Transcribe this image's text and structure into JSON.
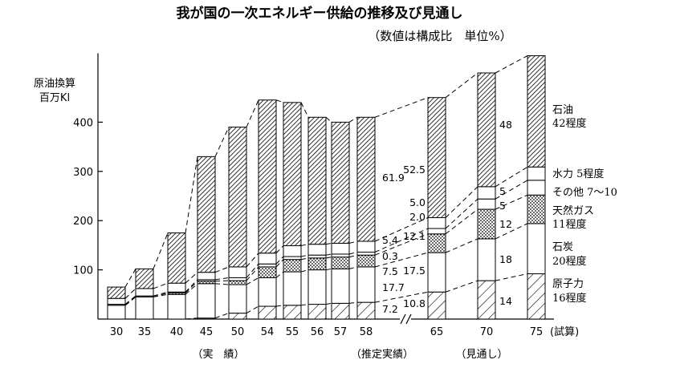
{
  "title": "我が国の一次エネルギー供給の推移及び見通し",
  "subtitle": "（数値は構成比　単位%）",
  "ylabel": [
    "原油換算",
    "百万Kl"
  ],
  "chart_data": {
    "type": "bar",
    "stacked": true,
    "categories": [
      "30",
      "35",
      "40",
      "45",
      "50",
      "54",
      "55",
      "56",
      "57",
      "58",
      "65",
      "70",
      "75"
    ],
    "x_suffix": "(試算)",
    "ylim": [
      0,
      540
    ],
    "yticks": [
      100,
      200,
      300,
      400
    ],
    "totals": [
      65,
      102,
      175,
      330,
      390,
      445,
      440,
      410,
      400,
      410,
      450,
      500,
      535
    ],
    "series": [
      {
        "name": "原子力",
        "pattern": "hatch-light",
        "values": [
          0,
          0,
          0,
          2,
          12,
          26,
          28,
          30,
          32,
          34,
          55,
          78,
          92
        ]
      },
      {
        "name": "石炭",
        "pattern": "white",
        "values": [
          28,
          45,
          50,
          70,
          58,
          58,
          68,
          70,
          70,
          72,
          80,
          85,
          102
        ]
      },
      {
        "name": "天然ガス",
        "pattern": "dots",
        "values": [
          0,
          0,
          3,
          5,
          8,
          22,
          25,
          24,
          24,
          24,
          38,
          60,
          58
        ]
      },
      {
        "name": "その他",
        "pattern": "white",
        "values": [
          2,
          2,
          2,
          3,
          6,
          6,
          6,
          6,
          6,
          6,
          11,
          21,
          30
        ]
      },
      {
        "name": "水力",
        "pattern": "white",
        "values": [
          12,
          15,
          18,
          15,
          22,
          22,
          22,
          22,
          22,
          22,
          22,
          25,
          27
        ]
      },
      {
        "name": "石油",
        "pattern": "hatch-dense",
        "values": [
          23,
          40,
          102,
          235,
          284,
          311,
          291,
          258,
          246,
          252,
          244,
          231,
          226
        ]
      }
    ],
    "annotations_58": [
      "61.9",
      "5.4",
      "0.3",
      "7.5",
      "17.7",
      "7.2"
    ],
    "annotations_65": [
      "52.5",
      "5.0",
      "2.0",
      "12.1",
      "17.5",
      "10.8"
    ],
    "annotations_70": [
      "48",
      "5",
      "5",
      "12",
      "18",
      "14"
    ],
    "legend_right": [
      {
        "line1": "石油",
        "line2": "42程度"
      },
      {
        "line1": "水力 5程度",
        "line2": ""
      },
      {
        "line1": "その他 7～10",
        "line2": ""
      },
      {
        "line1": "天然ガス",
        "line2": "11程度"
      },
      {
        "line1": "石炭",
        "line2": "20程度"
      },
      {
        "line1": "原子力",
        "line2": "16程度"
      }
    ],
    "periods": [
      "（実　績）",
      "（推定実績）",
      "（見通し）"
    ]
  }
}
